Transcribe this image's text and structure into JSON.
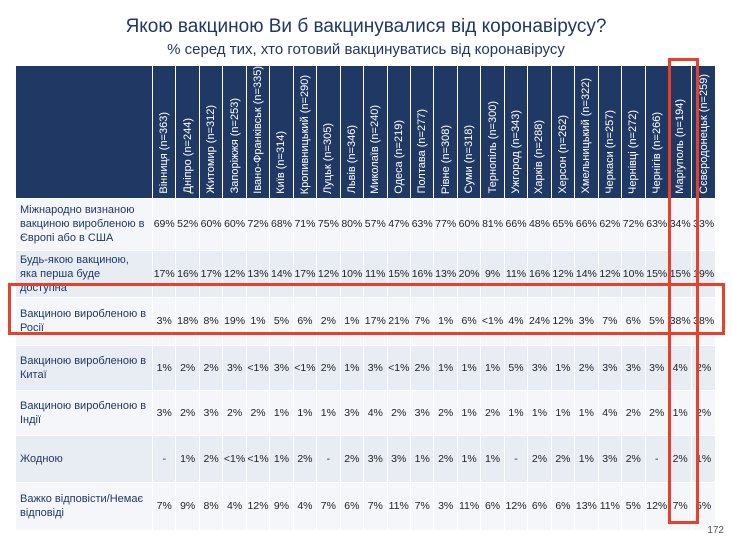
{
  "header": {
    "title": "Якою вакциною Ви б вакцинувалися від коронавірусу?",
    "subtitle": "% серед тих, хто готовий вакцинуватись від коронавірусу"
  },
  "table": {
    "columns": [
      "Вінниця (n=363)",
      "Дніпро (n=244)",
      "Житомир (n=312)",
      "Запоріжжя (n=253)",
      "Івано-Франківськ (n=335)",
      "Київ (n=314)",
      "Кропивницький (n=290)",
      "Луцьк (n=305)",
      "Львів (n=346)",
      "Миколаїв (n=240)",
      "Одеса (n=219)",
      "Полтава (n=277)",
      "Рівне (n=308)",
      "Суми (n=318)",
      "Тернопіль (n=300)",
      "Ужгород (n=343)",
      "Харків (n=288)",
      "Херсон (n=262)",
      "Хмельницький (n=322)",
      "Черкаси (n=257)",
      "Чернівці (n=272)",
      "Чернігів (n=266)",
      "Маріуполь (n=194)",
      "Сєвєродонецьк (n=259)"
    ],
    "rows": [
      {
        "label": "Міжнародно визнаною вакциною виробленою в Європі або в США",
        "values": [
          "69%",
          "52%",
          "60%",
          "60%",
          "72%",
          "68%",
          "71%",
          "75%",
          "80%",
          "57%",
          "47%",
          "63%",
          "77%",
          "60%",
          "81%",
          "66%",
          "48%",
          "65%",
          "66%",
          "62%",
          "72%",
          "63%",
          "34%",
          "33%"
        ]
      },
      {
        "label": "Будь-якою вакциною, яка перша буде доступна",
        "values": [
          "17%",
          "16%",
          "17%",
          "12%",
          "13%",
          "14%",
          "17%",
          "12%",
          "10%",
          "11%",
          "15%",
          "16%",
          "13%",
          "20%",
          "9%",
          "11%",
          "16%",
          "12%",
          "14%",
          "12%",
          "10%",
          "15%",
          "15%",
          "19%"
        ]
      },
      {
        "label": "Вакциною виробленою в Росії",
        "values": [
          "3%",
          "18%",
          "8%",
          "19%",
          "1%",
          "5%",
          "6%",
          "2%",
          "1%",
          "17%",
          "21%",
          "7%",
          "1%",
          "6%",
          "<1%",
          "4%",
          "24%",
          "12%",
          "3%",
          "7%",
          "6%",
          "5%",
          "38%",
          "38%"
        ]
      },
      {
        "label": "Вакциною виробленою в Китаї",
        "values": [
          "1%",
          "2%",
          "2%",
          "3%",
          "<1%",
          "3%",
          "<1%",
          "2%",
          "1%",
          "3%",
          "<1%",
          "2%",
          "1%",
          "1%",
          "1%",
          "5%",
          "3%",
          "1%",
          "2%",
          "3%",
          "3%",
          "3%",
          "4%",
          "2%"
        ]
      },
      {
        "label": "Вакциною виробленою в Індії",
        "values": [
          "3%",
          "2%",
          "3%",
          "2%",
          "2%",
          "1%",
          "1%",
          "1%",
          "3%",
          "4%",
          "2%",
          "3%",
          "2%",
          "1%",
          "2%",
          "1%",
          "1%",
          "1%",
          "1%",
          "4%",
          "2%",
          "2%",
          "1%",
          "2%"
        ]
      },
      {
        "label": "Жодною",
        "values": [
          "-",
          "1%",
          "2%",
          "<1%",
          "<1%",
          "1%",
          "2%",
          "-",
          "2%",
          "3%",
          "3%",
          "1%",
          "2%",
          "1%",
          "1%",
          "-",
          "2%",
          "2%",
          "1%",
          "3%",
          "2%",
          "-",
          "2%",
          "1%"
        ]
      },
      {
        "label": "Важко відповісти/Немає відповіді",
        "values": [
          "7%",
          "9%",
          "8%",
          "4%",
          "12%",
          "9%",
          "4%",
          "7%",
          "6%",
          "7%",
          "11%",
          "7%",
          "3%",
          "11%",
          "6%",
          "12%",
          "6%",
          "6%",
          "13%",
          "11%",
          "5%",
          "12%",
          "7%",
          "5%"
        ]
      }
    ]
  },
  "page_number": "172"
}
